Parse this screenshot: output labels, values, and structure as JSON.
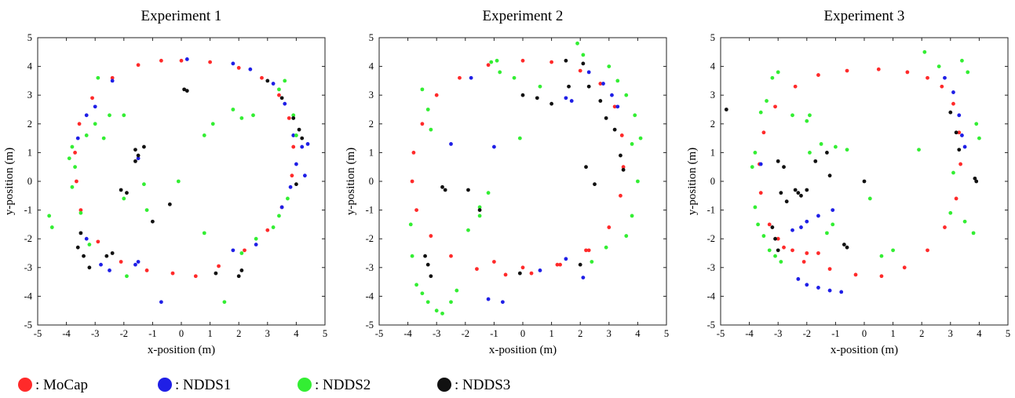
{
  "chart_data": [
    {
      "type": "scatter",
      "title": "Experiment 1",
      "xlabel": "x-position (m)",
      "ylabel": "y-position (m)",
      "xlim": [
        -5,
        5
      ],
      "ylim": [
        -5,
        5
      ],
      "xticks": [
        -5,
        -4,
        -3,
        -2,
        -1,
        0,
        1,
        2,
        3,
        4,
        5
      ],
      "yticks": [
        -5,
        -4,
        -3,
        -2,
        -1,
        0,
        1,
        2,
        3,
        4,
        5
      ],
      "grid": false,
      "series": [
        {
          "name": "MoCap",
          "color": "#ff2a2a",
          "x": [
            0.0,
            1.0,
            2.0,
            2.8,
            3.4,
            3.75,
            3.9,
            3.85,
            3.5,
            3.0,
            2.2,
            1.3,
            0.5,
            -0.3,
            -1.2,
            -2.1,
            -2.9,
            -3.5,
            -3.65,
            -3.7,
            -3.55,
            -3.1,
            -2.4,
            -1.5,
            -0.7
          ],
          "y": [
            4.2,
            4.15,
            3.95,
            3.6,
            3.0,
            2.2,
            1.2,
            0.2,
            -0.9,
            -1.7,
            -2.4,
            -2.95,
            -3.3,
            -3.2,
            -3.1,
            -2.8,
            -2.1,
            -1.0,
            0.0,
            1.0,
            2.0,
            2.9,
            3.6,
            4.05,
            4.2
          ]
        },
        {
          "name": "NDDS1",
          "color": "#1f1fe6",
          "x": [
            -2.4,
            -3.3,
            -3.6,
            -3.0,
            -1.5,
            0.2,
            1.8,
            2.4,
            3.2,
            3.6,
            3.9,
            4.2,
            4.0,
            3.8,
            3.5,
            2.6,
            1.8,
            -1.5,
            -2.5,
            -3.3,
            -0.7,
            -1.6,
            -2.8,
            4.4,
            4.3
          ],
          "y": [
            3.5,
            2.3,
            1.5,
            2.6,
            0.8,
            4.25,
            4.1,
            3.9,
            3.4,
            2.7,
            1.6,
            1.2,
            0.6,
            -0.2,
            -0.9,
            -2.2,
            -2.4,
            -2.8,
            -3.1,
            -2.0,
            -4.2,
            -2.9,
            -2.9,
            1.3,
            0.2
          ]
        },
        {
          "name": "NDDS2",
          "color": "#33ee33",
          "x": [
            -4.6,
            -4.5,
            -3.9,
            -3.8,
            -3.7,
            -3.3,
            -3.0,
            -2.7,
            -2.5,
            -2.0,
            -1.9,
            -1.3,
            -0.1,
            0.8,
            1.1,
            1.8,
            2.1,
            2.5,
            3.4,
            3.6,
            3.9,
            4.0,
            3.7,
            3.4,
            3.2,
            2.6,
            1.5,
            0.8,
            -2.9,
            -2.0,
            -1.2,
            -3.5,
            -3.8,
            -3.2,
            2.1
          ],
          "y": [
            -1.2,
            -1.6,
            0.8,
            1.2,
            0.5,
            1.6,
            2.0,
            1.5,
            2.3,
            2.3,
            -3.3,
            -0.1,
            0.0,
            1.6,
            2.0,
            2.5,
            2.2,
            2.3,
            3.2,
            3.5,
            2.3,
            1.6,
            -0.6,
            -1.2,
            -1.6,
            -2.0,
            -4.2,
            -1.8,
            3.6,
            -0.6,
            -1.0,
            -1.1,
            -0.2,
            -2.2,
            -2.5
          ]
        },
        {
          "name": "NDDS3",
          "color": "#111111",
          "x": [
            -3.5,
            -3.6,
            -3.4,
            -3.2,
            -2.1,
            -1.9,
            -1.6,
            -1.5,
            -1.6,
            -1.0,
            0.1,
            0.2,
            -1.3,
            2.0,
            3.0,
            3.5,
            3.9,
            4.1,
            4.2,
            4.0,
            -2.6,
            -2.4,
            1.2,
            2.1,
            -0.4
          ],
          "y": [
            -1.8,
            -2.3,
            -2.6,
            -3.0,
            -0.3,
            -0.4,
            1.1,
            0.9,
            0.7,
            -1.4,
            3.2,
            3.15,
            1.2,
            -3.3,
            3.5,
            2.9,
            2.2,
            1.8,
            1.5,
            -0.1,
            -2.6,
            -2.5,
            -3.2,
            -3.1,
            -0.8
          ]
        }
      ]
    },
    {
      "type": "scatter",
      "title": "Experiment 2",
      "xlabel": "x-position (m)",
      "ylabel": "y-position (m)",
      "xlim": [
        -5,
        5
      ],
      "ylim": [
        -5,
        5
      ],
      "xticks": [
        -5,
        -4,
        -3,
        -2,
        -1,
        0,
        1,
        2,
        3,
        4,
        5
      ],
      "yticks": [
        -5,
        -4,
        -3,
        -2,
        -1,
        0,
        1,
        2,
        3,
        4,
        5
      ],
      "grid": false,
      "series": [
        {
          "name": "MoCap",
          "color": "#ff2a2a",
          "x": [
            0.0,
            1.0,
            2.0,
            2.7,
            3.2,
            3.45,
            3.5,
            3.4,
            3.0,
            2.3,
            1.3,
            0.3,
            -0.6,
            -1.6,
            -2.5,
            -3.2,
            -3.7,
            -3.85,
            -3.8,
            -3.5,
            -3.0,
            -2.2,
            -1.2,
            2.2,
            1.2,
            0.0,
            -1.0
          ],
          "y": [
            4.2,
            4.15,
            3.85,
            3.4,
            2.6,
            1.6,
            0.5,
            -0.5,
            -1.6,
            -2.4,
            -2.9,
            -3.2,
            -3.25,
            -3.05,
            -2.6,
            -1.9,
            -1.0,
            0.0,
            1.0,
            2.0,
            3.0,
            3.6,
            4.05,
            -2.4,
            -2.9,
            -3.0,
            -2.8
          ]
        },
        {
          "name": "NDDS1",
          "color": "#1f1fe6",
          "x": [
            -1.8,
            2.3,
            2.8,
            3.1,
            3.3,
            1.5,
            1.7,
            -1.0,
            -0.7,
            -1.2,
            -2.5,
            2.1,
            1.5,
            0.6
          ],
          "y": [
            3.6,
            3.8,
            3.4,
            3.0,
            2.6,
            2.9,
            2.8,
            1.2,
            -4.2,
            -4.1,
            1.3,
            -3.35,
            -2.7,
            -3.1
          ]
        },
        {
          "name": "NDDS2",
          "color": "#33ee33",
          "x": [
            -3.9,
            -3.85,
            -3.7,
            -3.5,
            -3.3,
            -3.0,
            -2.8,
            -2.5,
            -2.3,
            -1.9,
            -3.2,
            -3.3,
            -3.5,
            -0.8,
            -0.3,
            0.6,
            -1.1,
            -0.9,
            1.9,
            2.1,
            3.0,
            3.3,
            3.6,
            3.9,
            4.1,
            4.0,
            3.8,
            3.6,
            2.9,
            2.4,
            3.8,
            -1.5,
            -1.2,
            -0.1,
            -1.5
          ],
          "y": [
            -1.5,
            -2.6,
            -3.6,
            -3.9,
            -4.2,
            -4.5,
            -4.6,
            -4.2,
            -3.8,
            -1.7,
            1.8,
            2.5,
            3.2,
            3.8,
            3.6,
            3.3,
            4.15,
            4.2,
            4.8,
            4.4,
            4.0,
            3.5,
            3.0,
            2.3,
            1.5,
            0.0,
            -1.2,
            -1.9,
            -2.3,
            -2.8,
            1.3,
            -1.2,
            -0.4,
            1.5,
            -0.9
          ]
        },
        {
          "name": "NDDS3",
          "color": "#111111",
          "x": [
            -3.4,
            -3.3,
            -3.2,
            -2.8,
            -2.7,
            -1.9,
            0.0,
            0.5,
            1.0,
            1.5,
            2.1,
            2.3,
            2.7,
            2.9,
            3.2,
            3.4,
            3.5,
            1.6,
            2.2,
            2.5,
            -1.5,
            -0.1,
            2.0
          ],
          "y": [
            -2.6,
            -2.9,
            -3.3,
            -0.2,
            -0.3,
            -0.3,
            3.0,
            2.9,
            2.7,
            4.2,
            4.1,
            3.3,
            2.8,
            2.2,
            1.8,
            0.9,
            0.4,
            3.3,
            0.5,
            -0.1,
            -1.0,
            -3.2,
            -2.9
          ]
        }
      ]
    },
    {
      "type": "scatter",
      "title": "Experiment 3",
      "xlabel": "x-position (m)",
      "ylabel": "y-position (m)",
      "xlim": [
        -5,
        5
      ],
      "ylim": [
        -5,
        5
      ],
      "xticks": [
        -5,
        -4,
        -3,
        -2,
        -1,
        0,
        1,
        2,
        3,
        4,
        5
      ],
      "yticks": [
        -5,
        -4,
        -3,
        -2,
        -1,
        0,
        1,
        2,
        3,
        4,
        5
      ],
      "grid": false,
      "series": [
        {
          "name": "MoCap",
          "color": "#ff2a2a",
          "x": [
            0.5,
            1.5,
            2.2,
            2.7,
            3.1,
            3.3,
            3.35,
            3.2,
            2.8,
            2.2,
            1.4,
            0.6,
            -0.3,
            -1.2,
            -2.1,
            -2.8,
            -3.3,
            -3.6,
            -3.65,
            -3.5,
            -3.1,
            -2.4,
            -1.6,
            -0.6,
            -3.0,
            -2.5,
            -2.0,
            -1.6
          ],
          "y": [
            3.9,
            3.8,
            3.6,
            3.3,
            2.7,
            1.7,
            0.6,
            -0.6,
            -1.6,
            -2.4,
            -3.0,
            -3.3,
            -3.25,
            -3.05,
            -2.8,
            -2.3,
            -1.5,
            -0.4,
            0.6,
            1.7,
            2.6,
            3.3,
            3.7,
            3.85,
            -2.0,
            -2.4,
            -2.5,
            -2.5
          ]
        },
        {
          "name": "NDDS1",
          "color": "#1f1fe6",
          "x": [
            -2.3,
            -2.0,
            -1.6,
            -1.2,
            -0.8,
            -2.2,
            -2.0,
            -1.6,
            2.8,
            3.1,
            3.3,
            3.4,
            3.5,
            -3.6,
            -1.1,
            -2.5
          ],
          "y": [
            -3.4,
            -3.6,
            -3.7,
            -3.8,
            -3.85,
            -1.6,
            -1.4,
            -1.2,
            3.6,
            3.1,
            2.3,
            1.6,
            1.2,
            0.6,
            -1.0,
            -1.7
          ]
        },
        {
          "name": "NDDS2",
          "color": "#33ee33",
          "x": [
            -3.8,
            -3.7,
            -3.5,
            -3.3,
            -3.1,
            -2.9,
            -3.9,
            -3.8,
            -3.6,
            -3.4,
            -3.2,
            -3.0,
            -2.5,
            -2.0,
            -1.5,
            -1.0,
            -0.6,
            0.2,
            0.6,
            1.0,
            3.4,
            3.6,
            3.9,
            4.0,
            3.8,
            3.5,
            3.0,
            2.6,
            2.1,
            -1.9,
            -1.3,
            -1.1,
            -1.9,
            1.9,
            3.1
          ],
          "y": [
            -0.9,
            -1.5,
            -1.9,
            -2.4,
            -2.6,
            -2.8,
            0.5,
            1.0,
            2.4,
            2.8,
            3.6,
            3.8,
            2.3,
            2.1,
            1.3,
            1.2,
            1.1,
            -0.6,
            -2.6,
            -2.4,
            4.2,
            3.8,
            2.0,
            1.5,
            -1.8,
            -1.4,
            -1.1,
            4.0,
            4.5,
            2.3,
            -1.8,
            -1.5,
            1.0,
            1.1,
            0.3
          ]
        },
        {
          "name": "NDDS3",
          "color": "#111111",
          "x": [
            -4.8,
            -3.2,
            -3.1,
            -3.0,
            -2.9,
            -2.7,
            -2.4,
            -2.3,
            -2.2,
            -2.0,
            -1.7,
            -1.3,
            -1.2,
            3.0,
            3.2,
            3.3,
            3.85,
            3.9,
            -3.0,
            -2.8,
            -0.6,
            -0.7,
            0.0
          ],
          "y": [
            2.5,
            -1.6,
            -2.0,
            -2.4,
            -0.4,
            -0.7,
            -0.3,
            -0.4,
            -0.5,
            -0.3,
            0.7,
            1.0,
            0.2,
            2.4,
            1.7,
            1.1,
            0.1,
            0.0,
            0.7,
            0.5,
            -2.3,
            -2.2,
            0.0
          ]
        }
      ]
    }
  ],
  "legend": {
    "position": "bottom-left",
    "items": [
      {
        "label": ": MoCap",
        "color": "#ff2a2a"
      },
      {
        "label": ": NDDS1",
        "color": "#1f1fe6"
      },
      {
        "label": ": NDDS2",
        "color": "#33ee33"
      },
      {
        "label": ": NDDS3",
        "color": "#111111"
      }
    ]
  }
}
